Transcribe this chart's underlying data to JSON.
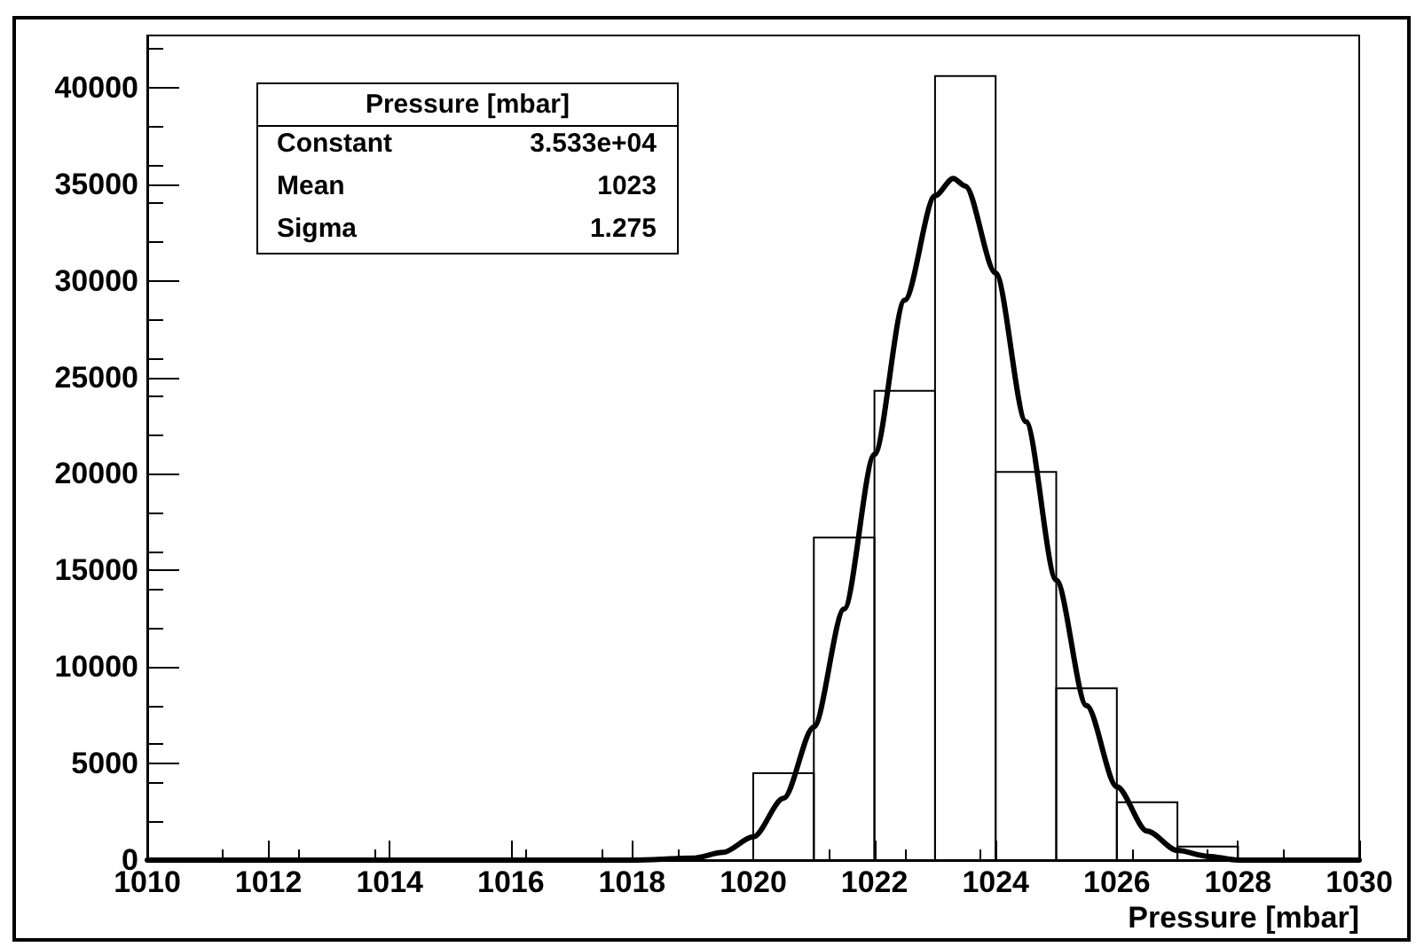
{
  "chart_data": {
    "type": "histogram",
    "xlabel": "Pressure [mbar]",
    "xlim": [
      1010,
      1030
    ],
    "xticks": [
      1010,
      1012,
      1014,
      1016,
      1018,
      1020,
      1022,
      1024,
      1026,
      1028,
      1030
    ],
    "ylim": [
      0,
      42700
    ],
    "yticks": [
      0,
      5000,
      10000,
      15000,
      20000,
      25000,
      30000,
      35000,
      40000
    ],
    "grid": false,
    "annotations": [
      "Pressure [mbar]",
      "Constant",
      "3.533e+04",
      "Mean",
      "1023",
      "Sigma",
      "1.275"
    ],
    "series": [
      {
        "color": "#000000",
        "bins": [
          1010,
          1011,
          1012,
          1013,
          1014,
          1015,
          1016,
          1017,
          1018,
          1019,
          1020,
          1021,
          1022,
          1023,
          1024,
          1025,
          1026,
          1027,
          1028,
          1029,
          1030
        ],
        "values": [
          0,
          0,
          0,
          0,
          0,
          0,
          0,
          0,
          0,
          0,
          4500,
          16700,
          24300,
          40600,
          20100,
          8900,
          3000,
          700,
          0,
          0
        ]
      },
      {
        "type": "line",
        "color": "#000000",
        "line_style": "solid",
        "marker": "none",
        "x": [
          1010,
          1012,
          1014,
          1016,
          1018,
          1019,
          1019.5,
          1020,
          1020.5,
          1021,
          1021.5,
          1022,
          1022.5,
          1023,
          1023.3,
          1023.5,
          1024,
          1024.5,
          1025,
          1025.5,
          1026,
          1026.5,
          1027,
          1027.5,
          1028,
          1029,
          1030
        ],
        "values": [
          0,
          0,
          0,
          0,
          0,
          100,
          400,
          1200,
          3200,
          6900,
          13000,
          21000,
          29000,
          34400,
          35300,
          34900,
          30400,
          22700,
          14500,
          8000,
          3800,
          1500,
          500,
          200,
          0,
          0,
          0
        ]
      }
    ]
  }
}
